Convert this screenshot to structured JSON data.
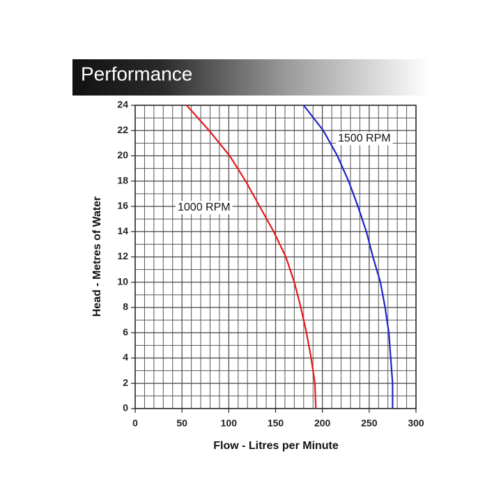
{
  "chart_data": {
    "type": "line",
    "title": "Performance",
    "xlabel": "Flow - Litres per Minute",
    "ylabel": "Head - Metres of Water",
    "xlim": [
      0,
      300
    ],
    "xticks": [
      0,
      50,
      100,
      150,
      200,
      250,
      300
    ],
    "ylim": [
      0,
      24
    ],
    "yticks": [
      0,
      2,
      4,
      6,
      8,
      10,
      12,
      14,
      16,
      18,
      20,
      22,
      24
    ],
    "grid": true,
    "series": [
      {
        "name": "1000 RPM",
        "color": "#e8161b",
        "x": [
          193,
          192,
          188,
          183,
          177,
          170,
          161,
          148,
          133,
          118,
          101,
          79,
          55
        ],
        "values": [
          0,
          2,
          4,
          6,
          8,
          10,
          12,
          14,
          16,
          18,
          20,
          22,
          24
        ]
      },
      {
        "name": "1500 RPM",
        "color": "#1c23c8",
        "x": [
          275,
          275,
          273,
          271,
          267,
          262,
          254,
          247,
          238,
          228,
          216,
          201,
          180
        ],
        "values": [
          0,
          2,
          4,
          6,
          8,
          10,
          12,
          14,
          16,
          18,
          20,
          22,
          24
        ]
      }
    ]
  }
}
